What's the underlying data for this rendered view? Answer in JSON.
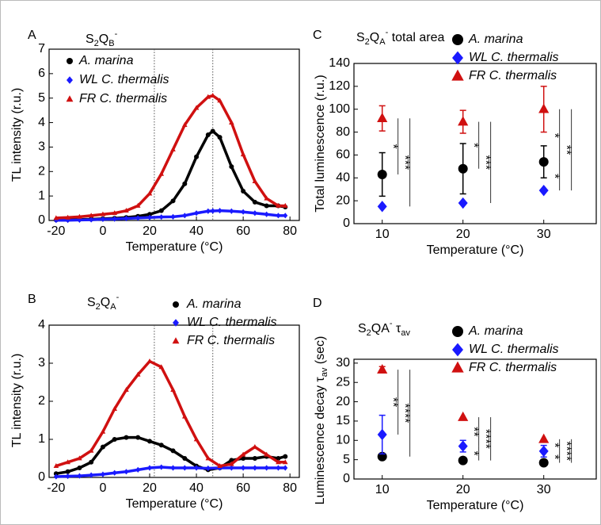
{
  "chart_data": [
    {
      "type": "line",
      "panel": "A",
      "title": [
        {
          "text": "S"
        },
        {
          "text": "2",
          "shift": "sub"
        },
        {
          "text": "Q"
        },
        {
          "text": "B",
          "shift": "sub"
        },
        {
          "text": "-",
          "shift": "sup"
        }
      ],
      "x_label": "Temperature (°C)",
      "y_label": "TL intensity (r.u.)",
      "x": [
        -20,
        -15,
        -10,
        -5,
        0,
        5,
        10,
        15,
        20,
        25,
        30,
        35,
        40,
        45,
        47,
        50,
        55,
        60,
        65,
        70,
        75,
        78
      ],
      "series": [
        {
          "name": "A. marina",
          "color": "#000000",
          "marker": "circle",
          "values": [
            0.02,
            0.03,
            0.04,
            0.05,
            0.07,
            0.09,
            0.12,
            0.17,
            0.25,
            0.4,
            0.8,
            1.5,
            2.6,
            3.5,
            3.65,
            3.4,
            2.2,
            1.2,
            0.75,
            0.6,
            0.6,
            0.55
          ]
        },
        {
          "name": "WL C. thermalis",
          "color": "#1a1aff",
          "marker": "diamond",
          "values": [
            0.01,
            0.01,
            0.02,
            0.03,
            0.05,
            0.06,
            0.08,
            0.1,
            0.12,
            0.14,
            0.15,
            0.2,
            0.3,
            0.38,
            0.39,
            0.4,
            0.38,
            0.35,
            0.3,
            0.25,
            0.2,
            0.2
          ]
        },
        {
          "name": "FR C. thermalis",
          "color": "#d01010",
          "marker": "triangle",
          "values": [
            0.1,
            0.12,
            0.15,
            0.2,
            0.25,
            0.3,
            0.4,
            0.6,
            1.1,
            1.9,
            2.9,
            3.9,
            4.6,
            5.05,
            5.1,
            4.9,
            4.0,
            2.7,
            1.6,
            0.9,
            0.6,
            0.6
          ]
        }
      ],
      "vlines": [
        22,
        47
      ],
      "xlim": [
        -23,
        84
      ],
      "xticks": [
        -20,
        0,
        20,
        40,
        60,
        80
      ],
      "ylim": [
        0,
        7
      ],
      "yticks": [
        0,
        1,
        2,
        3,
        4,
        5,
        6,
        7
      ]
    },
    {
      "type": "line",
      "panel": "B",
      "title": [
        {
          "text": "S"
        },
        {
          "text": "2",
          "shift": "sub"
        },
        {
          "text": "Q"
        },
        {
          "text": "A",
          "shift": "sub"
        },
        {
          "text": "-",
          "shift": "sup"
        }
      ],
      "x_label": "Temperature (°C)",
      "y_label": "TL intensity (r.u.)",
      "x": [
        -20,
        -15,
        -10,
        -5,
        0,
        5,
        10,
        15,
        20,
        25,
        30,
        35,
        40,
        45,
        50,
        55,
        60,
        65,
        70,
        75,
        78
      ],
      "series": [
        {
          "name": "A. marina",
          "color": "#000000",
          "marker": "circle",
          "values": [
            0.1,
            0.15,
            0.25,
            0.4,
            0.8,
            1.0,
            1.05,
            1.05,
            0.95,
            0.85,
            0.7,
            0.5,
            0.3,
            0.2,
            0.25,
            0.45,
            0.5,
            0.5,
            0.55,
            0.5,
            0.55
          ]
        },
        {
          "name": "WL C. thermalis",
          "color": "#1a1aff",
          "marker": "diamond",
          "values": [
            0.02,
            0.03,
            0.04,
            0.06,
            0.08,
            0.12,
            0.15,
            0.2,
            0.25,
            0.27,
            0.25,
            0.25,
            0.25,
            0.24,
            0.25,
            0.25,
            0.25,
            0.25,
            0.25,
            0.25,
            0.25
          ]
        },
        {
          "name": "FR C. thermalis",
          "color": "#d01010",
          "marker": "triangle",
          "values": [
            0.3,
            0.4,
            0.5,
            0.7,
            1.2,
            1.8,
            2.3,
            2.7,
            3.05,
            2.9,
            2.3,
            1.6,
            1.0,
            0.5,
            0.3,
            0.35,
            0.6,
            0.8,
            0.6,
            0.4,
            0.4
          ]
        }
      ],
      "vlines": [
        22,
        47
      ],
      "xlim": [
        -23,
        84
      ],
      "xticks": [
        -20,
        0,
        20,
        40,
        60,
        80
      ],
      "ylim": [
        0,
        4
      ],
      "yticks": [
        0,
        1,
        2,
        3,
        4
      ]
    },
    {
      "type": "scatter",
      "panel": "C",
      "title": [
        {
          "text": "S"
        },
        {
          "text": "2",
          "shift": "sub"
        },
        {
          "text": "Q"
        },
        {
          "text": "A",
          "shift": "sub"
        },
        {
          "text": "-",
          "shift": "sup"
        },
        {
          "text": " total area"
        }
      ],
      "x_label": "Temperature (°C)",
      "y_label": "Total luminescence (r.u.)",
      "x": [
        10,
        20,
        30
      ],
      "series": [
        {
          "name": "A. marina",
          "color": "#000000",
          "marker": "circle",
          "values": [
            43,
            48,
            54
          ],
          "errors": [
            19,
            22,
            14
          ]
        },
        {
          "name": "WL C. thermalis",
          "color": "#1a1aff",
          "marker": "diamond",
          "values": [
            15,
            18,
            29
          ],
          "errors": [
            null,
            null,
            null
          ]
        },
        {
          "name": "FR C. thermalis",
          "color": "#d01010",
          "marker": "triangle",
          "values": [
            92,
            89,
            100
          ],
          "errors": [
            11,
            10,
            20
          ]
        }
      ],
      "annotations": [
        "*",
        "***",
        "*",
        "***",
        "*",
        "*",
        "**"
      ],
      "xlim": [
        6.5,
        36.5
      ],
      "xticks": [
        10,
        20,
        30
      ],
      "ylim": [
        0,
        140
      ],
      "yticks": [
        0,
        20,
        40,
        60,
        80,
        100,
        120,
        140
      ]
    },
    {
      "type": "scatter",
      "panel": "D",
      "title": [
        {
          "text": "S"
        },
        {
          "text": "2",
          "shift": "sub"
        },
        {
          "text": "QA"
        },
        {
          "text": "-",
          "shift": "sup"
        },
        {
          "text": " τ"
        },
        {
          "text": "av",
          "shift": "sub"
        }
      ],
      "x_label": "Temperature (°C)",
      "y_label": [
        {
          "text": "Luminescence decay τ"
        },
        {
          "text": "av",
          "shift": "sub"
        },
        {
          "text": " (sec)"
        }
      ],
      "x": [
        10,
        20,
        30
      ],
      "series": [
        {
          "name": "A. marina",
          "color": "#000000",
          "marker": "circle",
          "values": [
            5.8,
            4.8,
            4.2
          ],
          "errors": [
            null,
            null,
            null
          ]
        },
        {
          "name": "WL C. thermalis",
          "color": "#1a1aff",
          "marker": "diamond",
          "values": [
            11.5,
            8.5,
            7.2
          ],
          "errors": [
            5,
            1.5,
            1.5
          ]
        },
        {
          "name": "FR C. thermalis",
          "color": "#d01010",
          "marker": "triangle",
          "values": [
            28.3,
            16,
            10.3
          ],
          "errors": [
            0.8,
            null,
            null
          ]
        }
      ],
      "annotations": [
        "**",
        "****",
        "**",
        "*",
        "****",
        "*",
        "*",
        "****"
      ],
      "xlim": [
        6.5,
        36.5
      ],
      "xticks": [
        10,
        20,
        30
      ],
      "ylim": [
        0,
        31
      ],
      "yticks": [
        0,
        5,
        10,
        15,
        20,
        25,
        30
      ]
    }
  ]
}
